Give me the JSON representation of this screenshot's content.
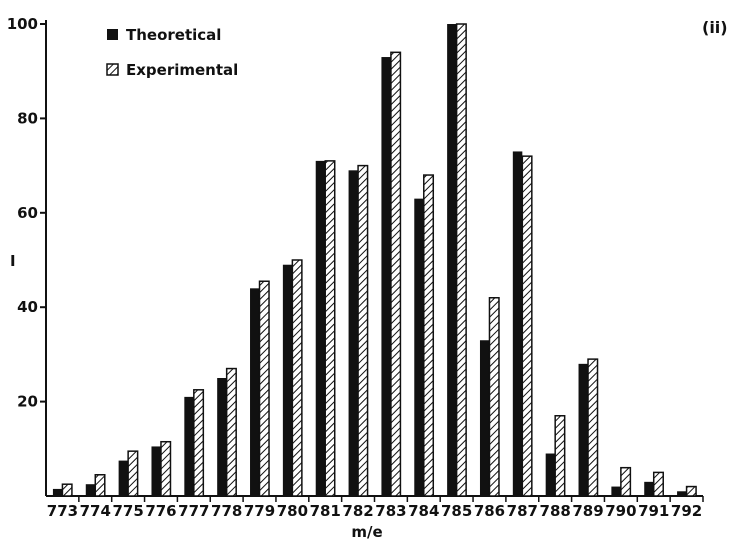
{
  "chart_data": {
    "type": "bar",
    "panel_label": "(ii)",
    "xlabel": "m/e",
    "ylabel": "I",
    "ylim": [
      0,
      100
    ],
    "yticks": [
      20,
      40,
      60,
      80,
      100
    ],
    "grid": false,
    "legend_position": "top-left",
    "categories": [
      "773",
      "774",
      "775",
      "776",
      "777",
      "778",
      "779",
      "780",
      "781",
      "782",
      "783",
      "784",
      "785",
      "786",
      "787",
      "788",
      "789",
      "790",
      "791",
      "792"
    ],
    "series": [
      {
        "name": "Theoretical",
        "fill": "solid",
        "color": "#111111",
        "values": [
          1.5,
          2.5,
          7.5,
          10.5,
          21,
          25,
          44,
          49,
          71,
          69,
          93,
          63,
          100,
          33,
          73,
          9,
          28,
          2,
          3,
          1
        ]
      },
      {
        "name": "Experimental",
        "fill": "hatched",
        "color": "#111111",
        "values": [
          2.5,
          4.5,
          9.5,
          11.5,
          22.5,
          27,
          45.5,
          50,
          71,
          70,
          94,
          68,
          100,
          42,
          72,
          17,
          29,
          6,
          5,
          2
        ]
      }
    ]
  }
}
